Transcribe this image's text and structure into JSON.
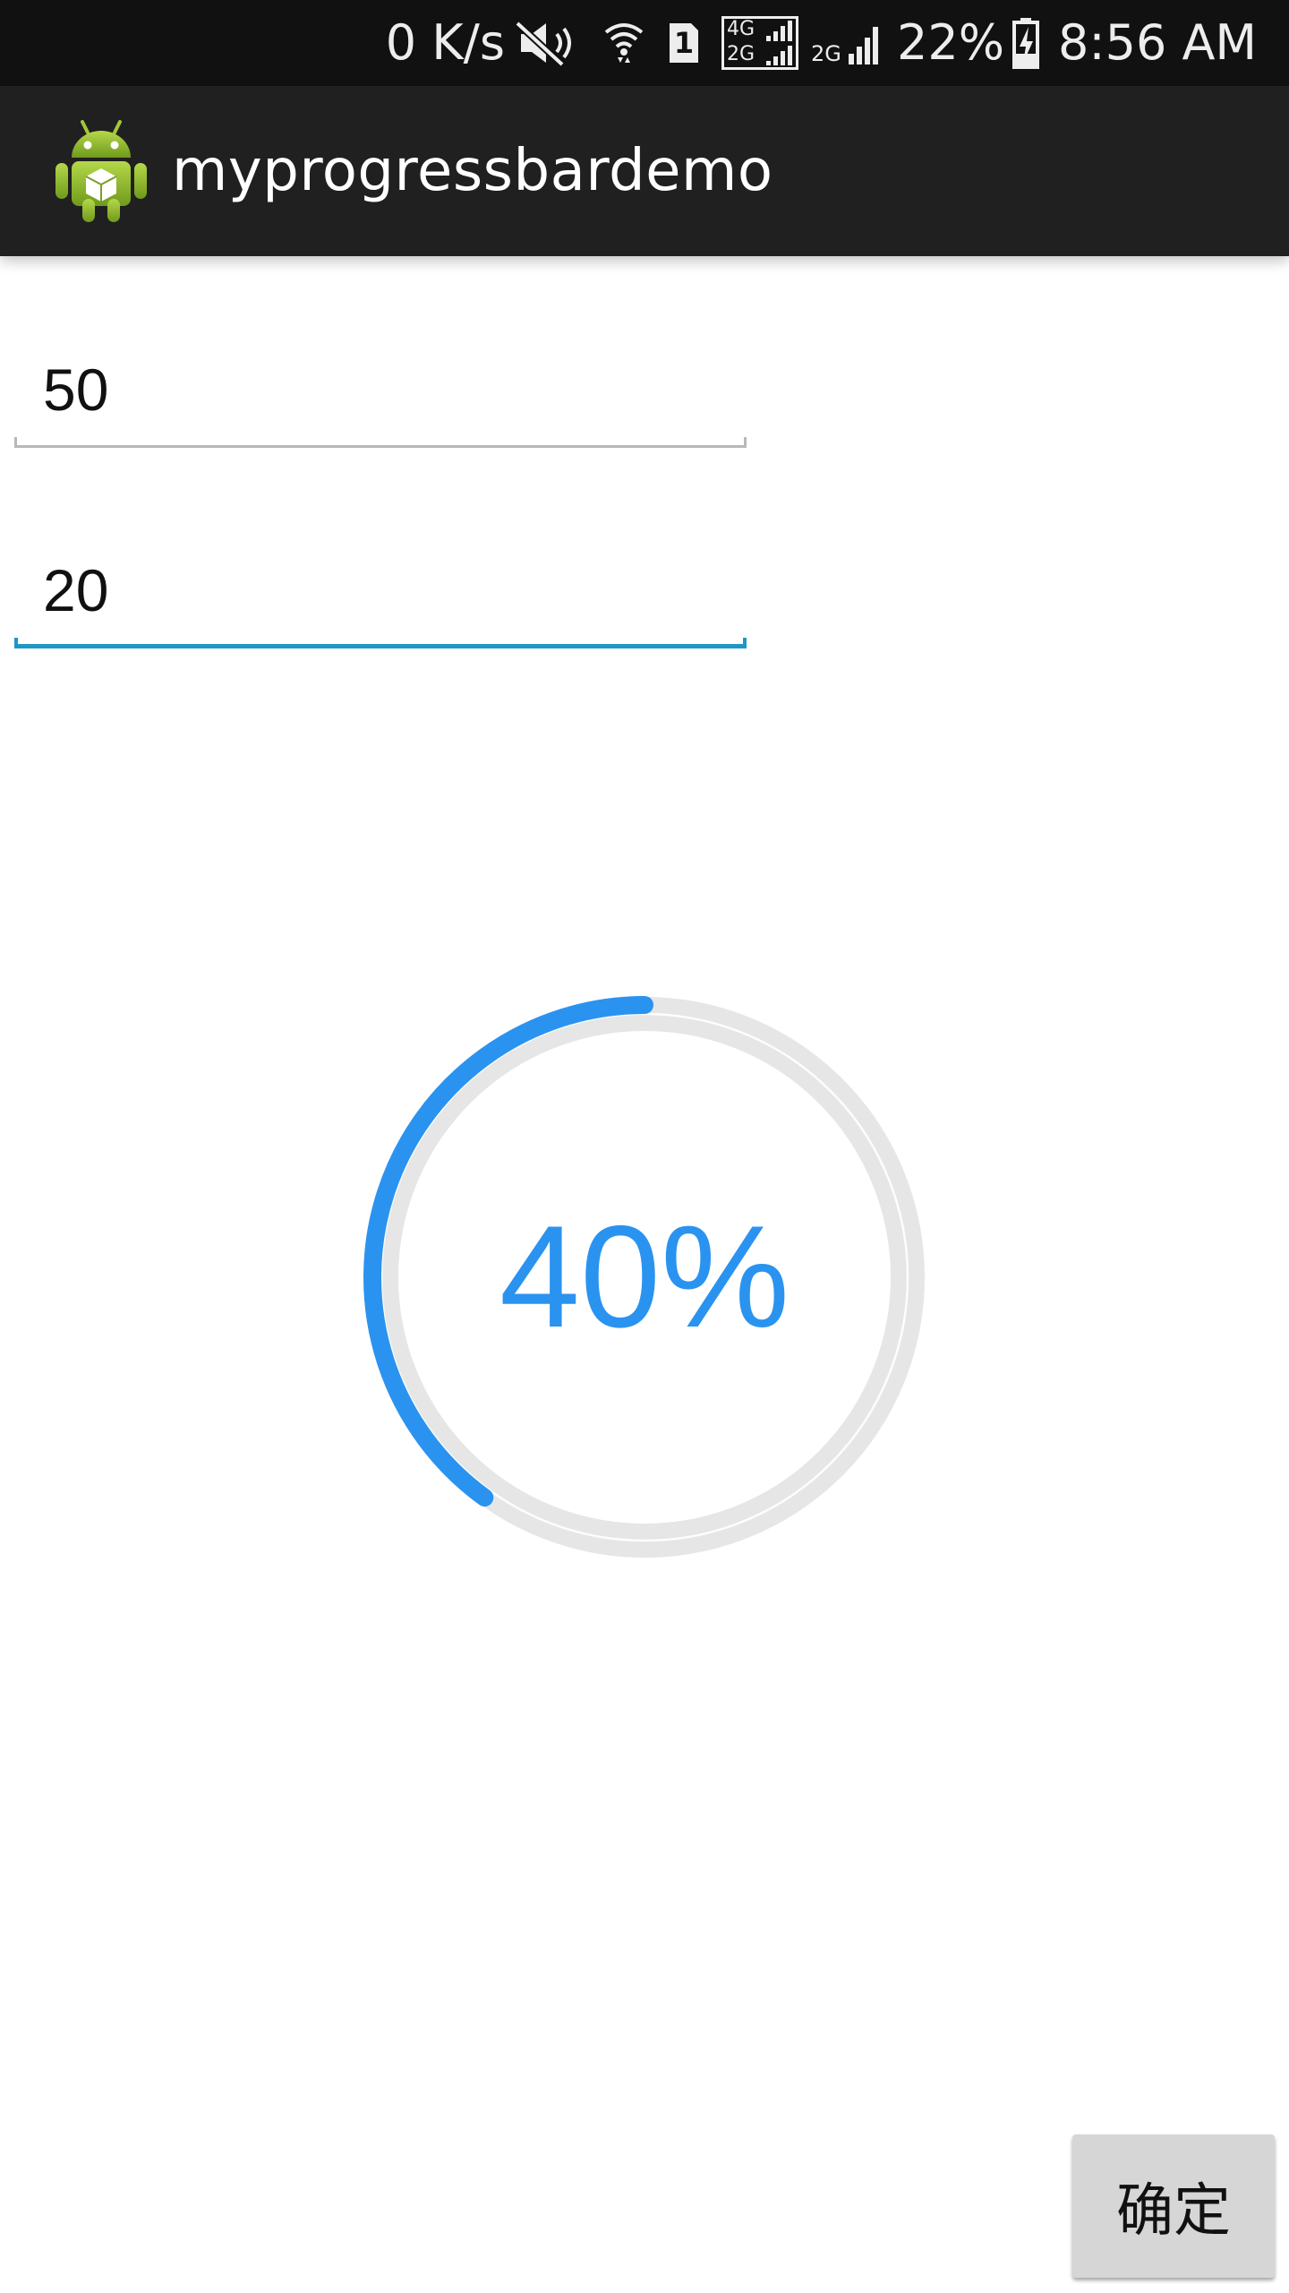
{
  "status_bar": {
    "net_speed": "0 K/s",
    "sim_badge": "1",
    "net_type_top": "4G",
    "net_type_bottom": "2G",
    "net_type_2": "2G",
    "battery_percent": "22%",
    "time": "8:56 AM",
    "icons": [
      "mute-icon",
      "wifi-icon",
      "sim-icon",
      "signal-4g-2g-icon",
      "signal-2g-icon",
      "battery-charging-icon"
    ]
  },
  "action_bar": {
    "title": "myprogressbardemo",
    "icon": "android-icon"
  },
  "inputs": {
    "first": {
      "value": "50",
      "focused": false
    },
    "second": {
      "value": "20",
      "focused": true
    }
  },
  "progress": {
    "label": "40%",
    "fraction": 0.4
  },
  "confirm_button": {
    "label": "确定"
  },
  "colors": {
    "accent": "#2a93f0",
    "focused_underline": "#1e96c8",
    "idle_underline": "#b8b8b8",
    "track": "#e6e6e6",
    "status_bar": "#111111",
    "action_bar": "#202020"
  }
}
